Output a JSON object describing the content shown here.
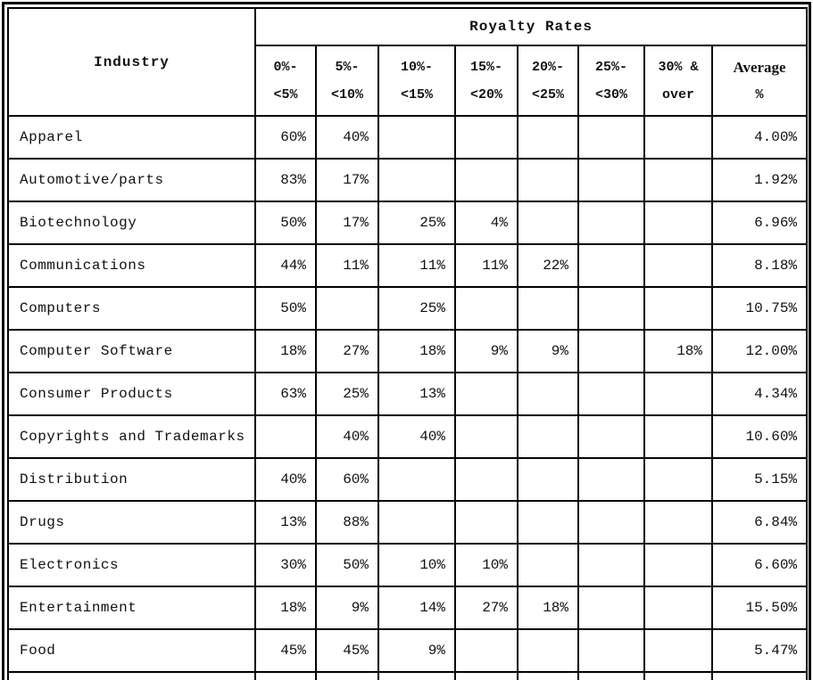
{
  "page": {
    "background": "#ffffff",
    "border_color": "#000000",
    "text_color": "#111111"
  },
  "table": {
    "title": "Royalty Rates",
    "industry_header": "Industry",
    "rate_columns": [
      {
        "line1": "0%-",
        "line2": "<5%"
      },
      {
        "line1": "5%-",
        "line2": "<10%"
      },
      {
        "line1": "10%-",
        "line2": "<15%"
      },
      {
        "line1": "15%-",
        "line2": "<20%"
      },
      {
        "line1": "20%-",
        "line2": "<25%"
      },
      {
        "line1": "25%-",
        "line2": "<30%"
      },
      {
        "line1": "30% &",
        "line2": "over"
      },
      {
        "line1": "Average",
        "line2": "%"
      }
    ],
    "rows": [
      {
        "industry": "Apparel",
        "values": [
          "60%",
          "40%",
          "",
          "",
          "",
          "",
          ""
        ],
        "average": "4.00%"
      },
      {
        "industry": "Automotive/parts",
        "values": [
          "83%",
          "17%",
          "",
          "",
          "",
          "",
          ""
        ],
        "average": "1.92%"
      },
      {
        "industry": "Biotechnology",
        "values": [
          "50%",
          "17%",
          "25%",
          "4%",
          "",
          "",
          ""
        ],
        "average": "6.96%"
      },
      {
        "industry": "Communications",
        "values": [
          "44%",
          "11%",
          "11%",
          "11%",
          "22%",
          "",
          ""
        ],
        "average": "8.18%"
      },
      {
        "industry": "Computers",
        "values": [
          "50%",
          "",
          "25%",
          "",
          "",
          "",
          ""
        ],
        "average": "10.75%"
      },
      {
        "industry": "Computer Software",
        "values": [
          "18%",
          "27%",
          "18%",
          "9%",
          "9%",
          "",
          "18%"
        ],
        "average": "12.00%"
      },
      {
        "industry": "Consumer Products",
        "values": [
          "63%",
          "25%",
          "13%",
          "",
          "",
          "",
          ""
        ],
        "average": "4.34%"
      },
      {
        "industry": "Copyrights and Trademarks",
        "values": [
          "",
          "40%",
          "40%",
          "",
          "",
          "",
          ""
        ],
        "average": "10.60%"
      },
      {
        "industry": "Distribution",
        "values": [
          "40%",
          "60%",
          "",
          "",
          "",
          "",
          ""
        ],
        "average": "5.15%"
      },
      {
        "industry": "Drugs",
        "values": [
          "13%",
          "88%",
          "",
          "",
          "",
          "",
          ""
        ],
        "average": "6.84%"
      },
      {
        "industry": "Electronics",
        "values": [
          "30%",
          "50%",
          "10%",
          "10%",
          "",
          "",
          ""
        ],
        "average": "6.60%"
      },
      {
        "industry": "Entertainment",
        "values": [
          "18%",
          "9%",
          "14%",
          "27%",
          "18%",
          "",
          ""
        ],
        "average": "15.50%"
      },
      {
        "industry": "Food",
        "values": [
          "45%",
          "45%",
          "9%",
          "",
          "",
          "",
          ""
        ],
        "average": "5.47%"
      }
    ]
  }
}
